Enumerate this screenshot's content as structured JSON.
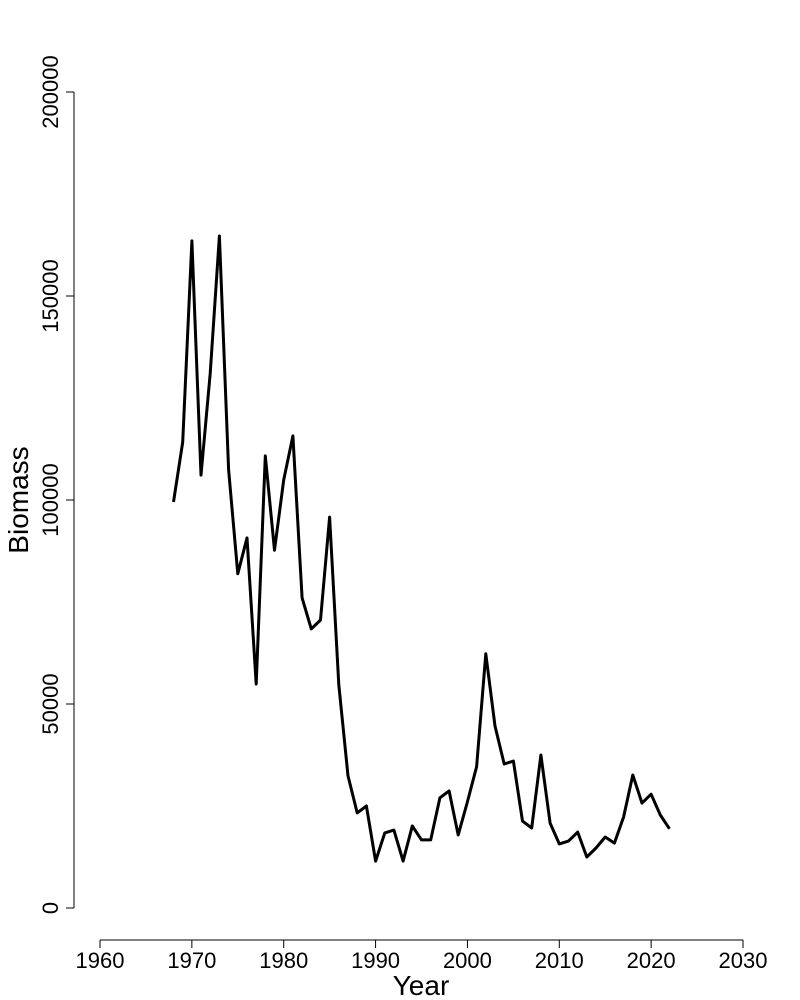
{
  "chart_data": {
    "type": "line",
    "title": "",
    "xlabel": "Year",
    "ylabel": "Biomass",
    "xlim": [
      1960,
      2030
    ],
    "ylim": [
      0,
      200000
    ],
    "x_ticks": [
      1960,
      1970,
      1980,
      1990,
      2000,
      2010,
      2020,
      2030
    ],
    "y_ticks": [
      0,
      50000,
      100000,
      150000,
      200000
    ],
    "x_tick_labels": [
      "1960",
      "1970",
      "1980",
      "1990",
      "2000",
      "2010",
      "2020",
      "2030"
    ],
    "y_tick_labels": [
      "0",
      "50000",
      "100000",
      "150000",
      "200000"
    ],
    "grid": false,
    "line_color": "#000000",
    "x": [
      1968,
      1969,
      1970,
      1971,
      1972,
      1973,
      1974,
      1975,
      1976,
      1977,
      1978,
      1979,
      1980,
      1981,
      1982,
      1983,
      1984,
      1985,
      1986,
      1987,
      1988,
      1989,
      1990,
      1991,
      1992,
      1993,
      1994,
      1995,
      1996,
      1997,
      1998,
      1999,
      2000,
      2001,
      2002,
      2003,
      2004,
      2005,
      2006,
      2007,
      2008,
      2009,
      2010,
      2011,
      2012,
      2013,
      2014,
      2015,
      2016,
      2017,
      2018,
      2019,
      2020,
      2021,
      2022
    ],
    "y": [
      99500,
      114200,
      163500,
      106100,
      131000,
      164700,
      107400,
      81900,
      90700,
      54900,
      110800,
      87700,
      104900,
      115700,
      76000,
      68400,
      70600,
      95800,
      54700,
      32400,
      23300,
      25000,
      11500,
      18400,
      19100,
      11500,
      20100,
      16700,
      16700,
      27000,
      28700,
      17900,
      26000,
      34600,
      62300,
      44600,
      35300,
      36000,
      21300,
      19600,
      37500,
      20800,
      15700,
      16400,
      18600,
      12500,
      14700,
      17400,
      15900,
      22300,
      32600,
      25700,
      27900,
      22800,
      19400
    ]
  }
}
